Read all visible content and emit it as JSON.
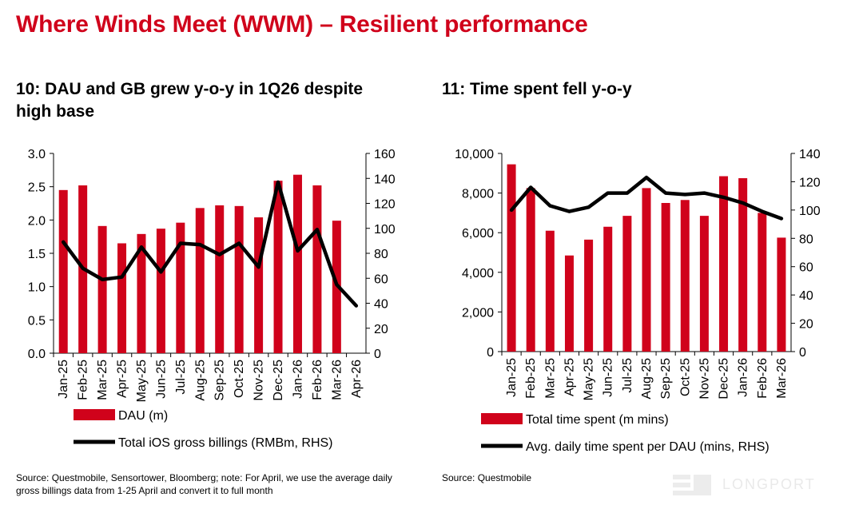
{
  "page": {
    "title": "Where Winds Meet (WWM) – Resilient performance",
    "watermark": "LONGPORT"
  },
  "chart_data": [
    {
      "type": "bar",
      "title": "10: DAU and GB grew y-o-y in 1Q26 despite high base",
      "categories": [
        "Jan-25",
        "Feb-25",
        "Mar-25",
        "Apr-25",
        "May-25",
        "Jun-25",
        "Jul-25",
        "Aug-25",
        "Sep-25",
        "Oct-25",
        "Nov-25",
        "Dec-25",
        "Jan-26",
        "Feb-26",
        "Mar-26",
        "Apr-26"
      ],
      "series": [
        {
          "name": "DAU (m)",
          "type": "bar",
          "axis": "left",
          "color": "#d0021b",
          "values": [
            2.45,
            2.52,
            1.91,
            1.65,
            1.79,
            1.87,
            1.96,
            2.18,
            2.22,
            2.21,
            2.04,
            2.59,
            2.68,
            2.52,
            1.99,
            null
          ]
        },
        {
          "name": "Total iOS gross billings (RMBm, RHS)",
          "type": "line",
          "axis": "right",
          "color": "#000000",
          "values": [
            89,
            68,
            59,
            61,
            85,
            65,
            88,
            87,
            79,
            88,
            69,
            137,
            82,
            99,
            55,
            38
          ]
        }
      ],
      "ylim_left": [
        0,
        3.0
      ],
      "yticks_left": [
        "0.0",
        "0.5",
        "1.0",
        "1.5",
        "2.0",
        "2.5",
        "3.0"
      ],
      "ylim_right": [
        0,
        160
      ],
      "yticks_right": [
        "0",
        "20",
        "40",
        "60",
        "80",
        "100",
        "120",
        "140",
        "160"
      ],
      "legend": "bottom",
      "source": "Source: Questmobile, Sensortower, Bloomberg; note: For April, we use the average daily gross billings data from 1-25 April and convert it to full month"
    },
    {
      "type": "bar",
      "title": "11: Time spent fell y-o-y",
      "categories": [
        "Jan-25",
        "Feb-25",
        "Mar-25",
        "Apr-25",
        "May-25",
        "Jun-25",
        "Jul-25",
        "Aug-25",
        "Sep-25",
        "Oct-25",
        "Nov-25",
        "Dec-25",
        "Jan-26",
        "Feb-26",
        "Mar-26"
      ],
      "series": [
        {
          "name": "Total time spent (m mins)",
          "type": "bar",
          "axis": "left",
          "color": "#d0021b",
          "values": [
            9450,
            8250,
            6100,
            4850,
            5650,
            6300,
            6850,
            8250,
            7500,
            7650,
            6850,
            8850,
            8750,
            7000,
            5750
          ]
        },
        {
          "name": "Avg. daily time spent per DAU (mins, RHS)",
          "type": "line",
          "axis": "right",
          "color": "#000000",
          "values": [
            100,
            116,
            103,
            99,
            102,
            112,
            112,
            123,
            112,
            111,
            112,
            109,
            105,
            99,
            94
          ]
        }
      ],
      "ylim_left": [
        0,
        10000
      ],
      "yticks_left": [
        "0",
        "2,000",
        "4,000",
        "6,000",
        "8,000",
        "10,000"
      ],
      "ylim_right": [
        0,
        140
      ],
      "yticks_right": [
        "0",
        "20",
        "40",
        "60",
        "80",
        "100",
        "120",
        "140"
      ],
      "legend": "bottom",
      "source": "Source: Questmobile"
    }
  ]
}
